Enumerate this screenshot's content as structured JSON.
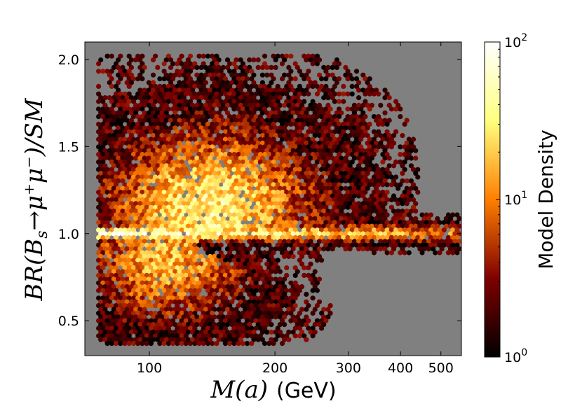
{
  "chart_data": {
    "type": "heatmap",
    "subtype": "hexbin",
    "title": "",
    "xlabel": {
      "math": "M(a)",
      "unit": "(GeV)"
    },
    "ylabel": {
      "math_prefix": "BR(B",
      "sub_s": "s",
      "arrow_mu": "→μ",
      "sup_plus": "+",
      "mu": "μ",
      "sup_minus": "−",
      "math_suffix": ")/SM"
    },
    "x_scale": "log",
    "xlim": [
      70,
      560
    ],
    "ylim": [
      0.3,
      2.1
    ],
    "x_ticks": [
      {
        "value": 100,
        "label": "100"
      },
      {
        "value": 200,
        "label": "200"
      },
      {
        "value": 300,
        "label": "300"
      },
      {
        "value": 400,
        "label": "400"
      },
      {
        "value": 500,
        "label": "500"
      }
    ],
    "y_ticks": [
      {
        "value": 0.5,
        "label": "0.5"
      },
      {
        "value": 1.0,
        "label": "1.0"
      },
      {
        "value": 1.5,
        "label": "1.5"
      },
      {
        "value": 2.0,
        "label": "2.0"
      }
    ],
    "background_color": "#808080",
    "grid": false,
    "colorbar": {
      "label": "Model Density",
      "scale": "log",
      "range": [
        1,
        100
      ],
      "ticks": [
        {
          "value": 1,
          "base": "10",
          "exp": "0"
        },
        {
          "value": 10,
          "base": "10",
          "exp": "1"
        },
        {
          "value": 100,
          "base": "10",
          "exp": "2"
        }
      ],
      "colormap": "afmhot",
      "colors": [
        "#000000",
        "#7f0000",
        "#ff7f00",
        "#ffff7f",
        "#ffffff"
      ]
    }
  }
}
